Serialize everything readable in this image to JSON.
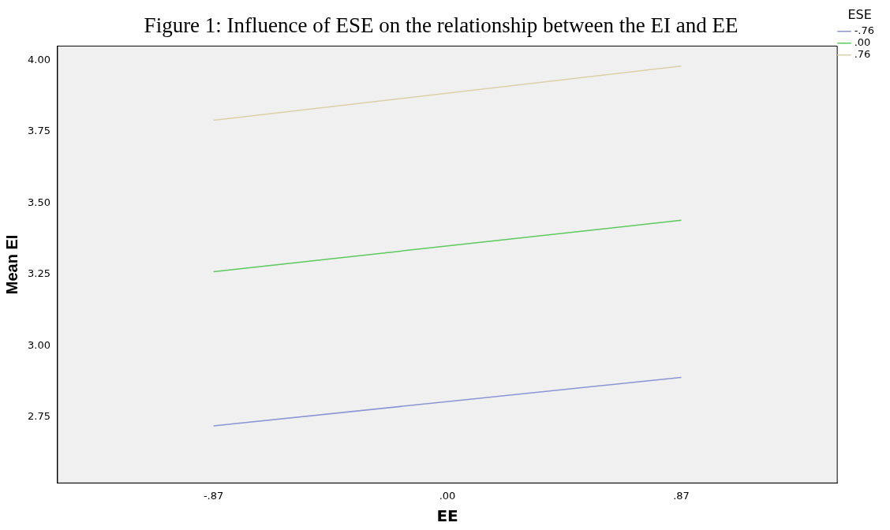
{
  "chart_data": {
    "type": "line",
    "title": "Figure 1: Influence of ESE on the relationship between the EI and EE",
    "xlabel": "EE",
    "ylabel": "Mean EI",
    "legend_title": "ESE",
    "x": [
      -0.87,
      0.87
    ],
    "series": [
      {
        "name": "-.76",
        "color": "#8b95d6",
        "values": [
          2.72,
          2.89
        ]
      },
      {
        "name": ".00",
        "color": "#5cc95c",
        "values": [
          3.26,
          3.44
        ]
      },
      {
        "name": ".76",
        "color": "#ddd0a8",
        "values": [
          3.79,
          3.98
        ]
      }
    ],
    "xlim": [
      -1.45,
      1.45
    ],
    "xticks": [
      {
        "value": -0.87,
        "label": "-.87"
      },
      {
        "value": 0,
        "label": ".00"
      },
      {
        "value": 0.87,
        "label": ".87"
      }
    ],
    "ylim": [
      2.52,
      4.05
    ],
    "yticks": [
      {
        "value": 2.75,
        "label": "2.75"
      },
      {
        "value": 3,
        "label": "3.00"
      },
      {
        "value": 3.25,
        "label": "3.25"
      },
      {
        "value": 3.5,
        "label": "3.50"
      },
      {
        "value": 3.75,
        "label": "3.75"
      },
      {
        "value": 4,
        "label": "4.00"
      }
    ],
    "grid": false,
    "legend": "top right",
    "marker": "none",
    "line_style": "solid"
  }
}
